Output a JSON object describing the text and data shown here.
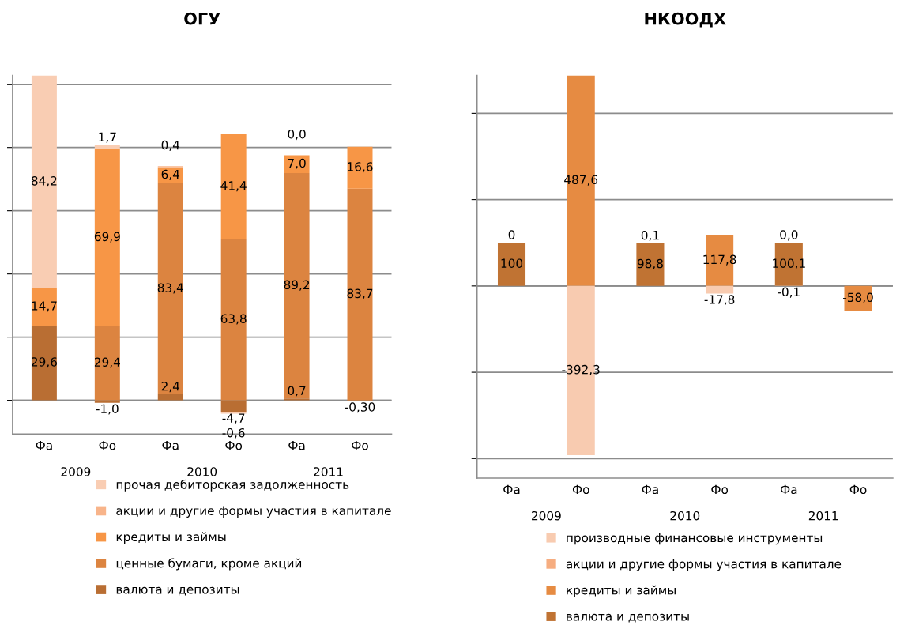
{
  "chart_data": [
    {
      "type": "bar",
      "title": "ОГУ",
      "stacked": true,
      "grid": "y",
      "legend": "bottom",
      "tick_labels": "x",
      "categories": [
        "Фа",
        "Фо",
        "Фа",
        "Фо",
        "Фа",
        "Фо"
      ],
      "annotations": [
        "2009",
        "2010",
        "2011"
      ],
      "series": [
        {
          "name": "валюта и депозиты",
          "color": "#b96e33",
          "values": [
            29.6,
            -1.0,
            2.4,
            -4.7,
            0.7,
            -0.3
          ],
          "value_labels": [
            "29,6",
            "-1,0",
            "2,4",
            "-4,7",
            "0,7",
            "-0,30"
          ]
        },
        {
          "name": "ценные бумаги, кроме акций",
          "color": "#dc8440",
          "values": [
            null,
            29.4,
            83.4,
            63.8,
            89.2,
            83.7
          ],
          "value_labels": [
            null,
            "29,4",
            "83,4",
            "63,8",
            "89,2",
            "83,7"
          ]
        },
        {
          "name": "кредиты и займы",
          "color": "#f79646",
          "values": [
            14.7,
            69.9,
            6.4,
            41.4,
            7.0,
            16.6
          ],
          "value_labels": [
            "14,7",
            "69,9",
            "6,4",
            "41,4",
            "7,0",
            "16,6"
          ]
        },
        {
          "name": "акции и другие формы участия в капитале",
          "color": "#f8b48a",
          "values": [
            null,
            null,
            0.4,
            null,
            0.0,
            null
          ],
          "value_labels": [
            null,
            null,
            "0,4",
            null,
            "0,0",
            null
          ]
        },
        {
          "name": "прочая дебиторская задолженность",
          "color": "#f9cdb3",
          "values": [
            84.2,
            1.7,
            null,
            -0.6,
            null,
            null
          ],
          "value_labels": [
            "84,2",
            "1,7",
            null,
            "-0,6",
            null,
            null
          ]
        }
      ]
    },
    {
      "type": "bar",
      "title": "НКООДХ",
      "stacked": true,
      "grid": "y",
      "legend": "bottom",
      "tick_labels": "x",
      "categories": [
        "Фа",
        "Фо",
        "Фа",
        "Фо",
        "Фа",
        "Фо"
      ],
      "annotations": [
        "2009",
        "2010",
        "2011"
      ],
      "series": [
        {
          "name": "валюта и депозиты",
          "color": "#c07333",
          "values": [
            100,
            null,
            98.8,
            null,
            100.1,
            null
          ],
          "value_labels": [
            "100",
            null,
            "98,8",
            null,
            "100,1",
            null
          ]
        },
        {
          "name": "кредиты и займы",
          "color": "#e68b42",
          "values": [
            0,
            487.6,
            null,
            117.8,
            null,
            -58.0
          ],
          "value_labels": [
            "0",
            "487,6",
            null,
            "117,8",
            null,
            "-58,0"
          ]
        },
        {
          "name": "акции и другие формы участия в капитале",
          "color": "#f6ad80",
          "values": [
            null,
            null,
            null,
            null,
            0.0,
            null
          ],
          "value_labels": [
            null,
            null,
            null,
            null,
            "0,0",
            null
          ]
        },
        {
          "name": "производные финансовые инструменты",
          "color": "#f8cbb0",
          "values": [
            null,
            -392.3,
            0.1,
            -17.8,
            -0.1,
            null
          ],
          "value_labels": [
            null,
            "-392,3",
            "0,1",
            "-17,8",
            "-0,1",
            null
          ]
        }
      ]
    }
  ]
}
